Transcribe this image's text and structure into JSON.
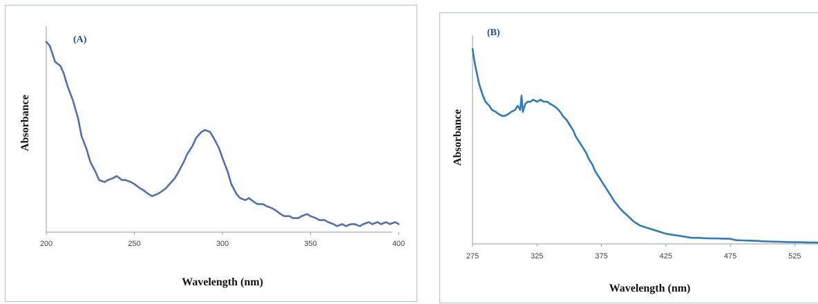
{
  "chart_data": [
    {
      "type": "line",
      "panel_label": "(A)",
      "xlabel": "Wavelength  (nm)",
      "ylabel": "Absorbance",
      "xlim": [
        200,
        400
      ],
      "ylim": [
        0,
        1
      ],
      "xticks": [
        "200",
        "250",
        "300",
        "350",
        "400"
      ],
      "y_ticks_shown": false,
      "grid": false,
      "line_color": "#4f6fb5",
      "series": [
        {
          "x": [
            200,
            202,
            205,
            208,
            210,
            212,
            215,
            218,
            220,
            223,
            225,
            228,
            230,
            233,
            235,
            238,
            240,
            243,
            245,
            248,
            250,
            253,
            255,
            258,
            260,
            263,
            265,
            268,
            270,
            273,
            275,
            278,
            280,
            283,
            285,
            288,
            290,
            293,
            295,
            298,
            300,
            303,
            305,
            308,
            310,
            313,
            315,
            318,
            320,
            323,
            325,
            328,
            330,
            333,
            335,
            338,
            340,
            343,
            345,
            348,
            350,
            353,
            355,
            358,
            360,
            363,
            365,
            368,
            370,
            373,
            375,
            378,
            380,
            383,
            385,
            388,
            390,
            393,
            395,
            398,
            400
          ],
          "values": [
            0.95,
            0.93,
            0.85,
            0.83,
            0.79,
            0.73,
            0.66,
            0.57,
            0.48,
            0.41,
            0.35,
            0.3,
            0.26,
            0.25,
            0.26,
            0.27,
            0.28,
            0.26,
            0.26,
            0.25,
            0.24,
            0.22,
            0.21,
            0.19,
            0.18,
            0.19,
            0.2,
            0.22,
            0.24,
            0.27,
            0.3,
            0.35,
            0.39,
            0.43,
            0.47,
            0.5,
            0.51,
            0.5,
            0.47,
            0.42,
            0.37,
            0.3,
            0.24,
            0.19,
            0.17,
            0.16,
            0.17,
            0.15,
            0.14,
            0.14,
            0.13,
            0.12,
            0.11,
            0.09,
            0.08,
            0.08,
            0.07,
            0.07,
            0.08,
            0.09,
            0.08,
            0.07,
            0.06,
            0.06,
            0.05,
            0.04,
            0.03,
            0.04,
            0.03,
            0.04,
            0.04,
            0.03,
            0.04,
            0.05,
            0.04,
            0.05,
            0.04,
            0.05,
            0.04,
            0.05,
            0.04
          ]
        }
      ]
    },
    {
      "type": "line",
      "panel_label": "(B)",
      "xlabel": "Wavelength  (nm)",
      "ylabel": "Absorbance",
      "xlim": [
        275,
        550
      ],
      "ylim": [
        0,
        1
      ],
      "xticks": [
        "275",
        "325",
        "375",
        "425",
        "475",
        "525"
      ],
      "y_ticks_shown": false,
      "grid": false,
      "line_color": "#2a7cc0",
      "series": [
        {
          "x": [
            275,
            277,
            280,
            283,
            285,
            288,
            290,
            293,
            295,
            298,
            300,
            303,
            305,
            308,
            310,
            312,
            313,
            314,
            315,
            316,
            318,
            320,
            322,
            325,
            328,
            330,
            333,
            335,
            338,
            340,
            343,
            345,
            348,
            350,
            353,
            355,
            358,
            360,
            363,
            365,
            368,
            370,
            373,
            375,
            378,
            380,
            385,
            390,
            395,
            400,
            405,
            410,
            415,
            420,
            425,
            430,
            435,
            440,
            445,
            450,
            455,
            460,
            465,
            470,
            475,
            478,
            480,
            485,
            490,
            495,
            500,
            505,
            510,
            515,
            520,
            525,
            530,
            535,
            540,
            545,
            550
          ],
          "values": [
            0.96,
            0.88,
            0.79,
            0.73,
            0.7,
            0.68,
            0.66,
            0.65,
            0.64,
            0.63,
            0.63,
            0.64,
            0.65,
            0.66,
            0.68,
            0.66,
            0.73,
            0.65,
            0.67,
            0.69,
            0.7,
            0.7,
            0.71,
            0.7,
            0.71,
            0.7,
            0.7,
            0.69,
            0.68,
            0.67,
            0.65,
            0.63,
            0.61,
            0.59,
            0.56,
            0.53,
            0.5,
            0.48,
            0.45,
            0.42,
            0.39,
            0.36,
            0.33,
            0.31,
            0.28,
            0.26,
            0.21,
            0.17,
            0.14,
            0.11,
            0.09,
            0.08,
            0.07,
            0.06,
            0.05,
            0.045,
            0.04,
            0.035,
            0.03,
            0.03,
            0.028,
            0.027,
            0.027,
            0.026,
            0.025,
            0.02,
            0.018,
            0.017,
            0.016,
            0.015,
            0.013,
            0.012,
            0.011,
            0.01,
            0.009,
            0.008,
            0.008,
            0.007,
            0.007,
            0.006,
            0.006
          ]
        }
      ]
    }
  ]
}
